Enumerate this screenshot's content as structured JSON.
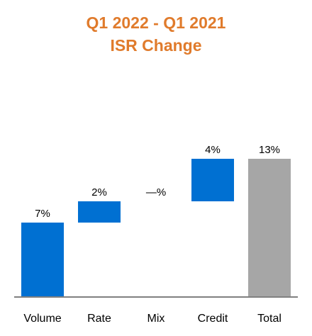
{
  "chart_data": {
    "type": "waterfall",
    "title": "Q1 2022 - Q1 2021",
    "subtitle": "ISR Change",
    "title_color": "#E07B2C",
    "categories": [
      "Volume",
      "Rate",
      "Mix",
      "Credit",
      "Total"
    ],
    "values": [
      7,
      2,
      0,
      4,
      13
    ],
    "value_labels": [
      "7%",
      "2%",
      "—%",
      "4%",
      "13%"
    ],
    "cumulative_start": [
      0,
      7,
      9,
      9,
      0
    ],
    "is_total": [
      false,
      false,
      false,
      false,
      true
    ],
    "ylim": [
      0,
      13
    ],
    "increase_color": "#0070D2",
    "total_color": "#A6A6A6",
    "axis_color": "#808080",
    "grid": false
  }
}
